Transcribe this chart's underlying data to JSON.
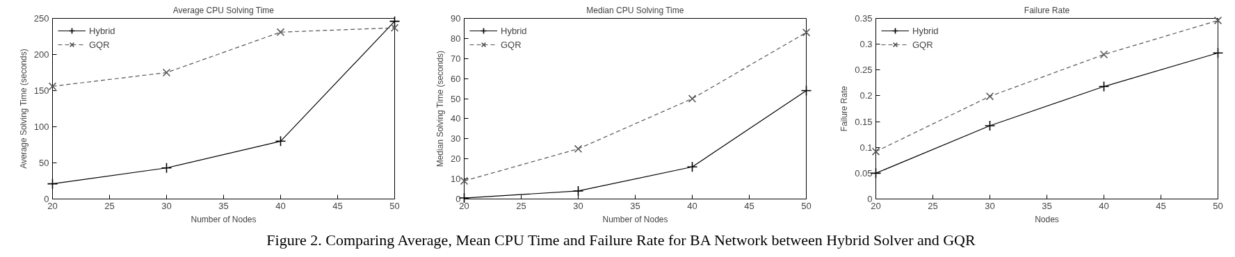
{
  "chart_data": [
    {
      "type": "line",
      "title": "Average CPU Solving Time",
      "xlabel": "Number of Nodes",
      "ylabel": "Average Solving Time (seconds)",
      "x": [
        20,
        30,
        40,
        50
      ],
      "xlim": [
        20,
        50
      ],
      "xticks": [
        20,
        25,
        30,
        35,
        40,
        45,
        50
      ],
      "ylim": [
        0,
        250
      ],
      "yticks": [
        0,
        50,
        100,
        150,
        200,
        250
      ],
      "legend": "top left",
      "grid": false,
      "series": [
        {
          "name": "Hybrid",
          "color": "#000000",
          "marker": "cross",
          "line_style": "solid",
          "values": [
            21,
            43,
            80,
            246
          ]
        },
        {
          "name": "GQR",
          "color": "#555555",
          "marker": "x",
          "line_style": "dashed",
          "values": [
            156,
            175,
            231,
            237
          ]
        }
      ]
    },
    {
      "type": "line",
      "title": "Median CPU Solving Time",
      "xlabel": "Number of Nodes",
      "ylabel": "Median Solving Time (seconds)",
      "x": [
        20,
        30,
        40,
        50
      ],
      "xlim": [
        20,
        50
      ],
      "xticks": [
        20,
        25,
        30,
        35,
        40,
        45,
        50
      ],
      "ylim": [
        0,
        90
      ],
      "yticks": [
        0,
        10,
        20,
        30,
        40,
        50,
        60,
        70,
        80,
        90
      ],
      "legend": "top left",
      "grid": false,
      "annotations": [
        "Figure 2. Comparing Average, Mean CPU Time and Failure Rate for BA Network between Hybrid Solver and GQR"
      ],
      "series": [
        {
          "name": "Hybrid",
          "color": "#000000",
          "marker": "cross",
          "line_style": "solid",
          "values": [
            0.5,
            4,
            16,
            54
          ]
        },
        {
          "name": "GQR",
          "color": "#555555",
          "marker": "x",
          "line_style": "dashed",
          "values": [
            9,
            25,
            50,
            83
          ]
        }
      ]
    },
    {
      "type": "line",
      "title": "Failure Rate",
      "xlabel": "Nodes",
      "ylabel": "Failure Rate",
      "x": [
        20,
        30,
        40,
        50
      ],
      "xlim": [
        20,
        50
      ],
      "xticks": [
        20,
        25,
        30,
        35,
        40,
        45,
        50
      ],
      "ylim": [
        0,
        0.35
      ],
      "yticks": [
        0,
        0.05,
        0.1,
        0.15,
        0.2,
        0.25,
        0.3,
        0.35
      ],
      "legend": "top left",
      "grid": false,
      "series": [
        {
          "name": "Hybrid",
          "color": "#000000",
          "marker": "cross",
          "line_style": "solid",
          "values": [
            0.05,
            0.142,
            0.218,
            0.283
          ]
        },
        {
          "name": "GQR",
          "color": "#555555",
          "marker": "x",
          "line_style": "dashed",
          "values": [
            0.092,
            0.199,
            0.28,
            0.346
          ]
        }
      ]
    }
  ]
}
